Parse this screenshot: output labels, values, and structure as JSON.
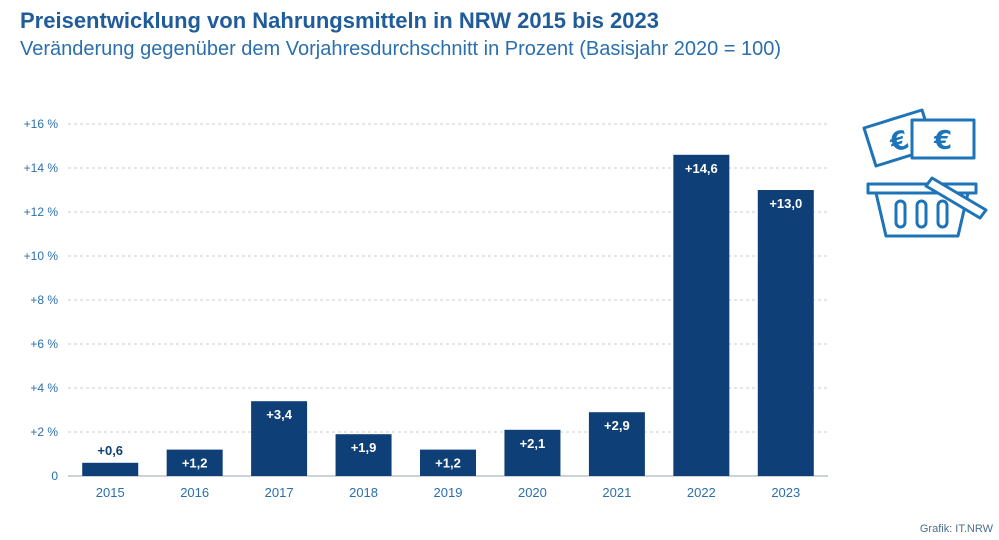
{
  "header": {
    "title": "Preisentwicklung von Nahrungsmitteln in NRW 2015 bis 2023",
    "subtitle": "Veränderung gegenüber dem Vorjahresdurchschnitt in Prozent (Basisjahr 2020 = 100)"
  },
  "credit": "Grafik: IT.NRW",
  "colors": {
    "bar": "#0e3f77",
    "title": "#1f5c99",
    "axis_text": "#2a6fae",
    "grid": "#c9cfd6"
  },
  "icons": [
    "euro-banknotes-icon",
    "shopping-basket-icon"
  ],
  "chart_data": {
    "type": "bar",
    "title": "Preisentwicklung von Nahrungsmitteln in NRW 2015 bis 2023",
    "subtitle": "Veränderung gegenüber dem Vorjahresdurchschnitt in Prozent (Basisjahr 2020 = 100)",
    "categories": [
      "2015",
      "2016",
      "2017",
      "2018",
      "2019",
      "2020",
      "2021",
      "2022",
      "2023"
    ],
    "values": [
      0.6,
      1.2,
      3.4,
      1.9,
      1.2,
      2.1,
      2.9,
      14.6,
      13.0
    ],
    "data_labels": [
      "+0,6",
      "+1,2",
      "+3,4",
      "+1,9",
      "+1,2",
      "+2,1",
      "+2,9",
      "+14,6",
      "+13,0"
    ],
    "y_ticks": [
      0,
      2,
      4,
      6,
      8,
      10,
      12,
      14,
      16
    ],
    "y_tick_labels": [
      "0",
      "+2 %",
      "+4 %",
      "+6 %",
      "+8 %",
      "+10 %",
      "+12 %",
      "+14 %",
      "+16 %"
    ],
    "ylim": [
      0,
      16
    ],
    "xlabel": "",
    "ylabel": "",
    "grid": true
  }
}
